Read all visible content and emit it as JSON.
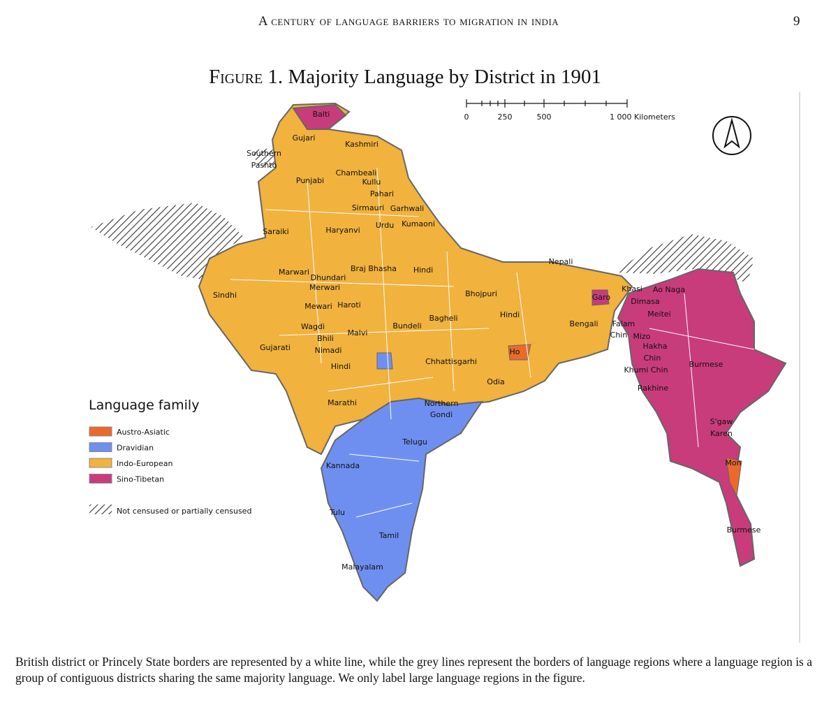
{
  "header": {
    "title": "A Century of Language Barriers to Migration in India",
    "page_number": "9"
  },
  "figure": {
    "label": "Figure 1.",
    "title": "Majority Language by District in 1901",
    "scale_bar": [
      "0",
      "250",
      "500",
      "1 000 Kilometers"
    ],
    "legend": {
      "title": "Language family",
      "items": [
        {
          "label": "Austro-Asiatic",
          "color": "#ea6a2c"
        },
        {
          "label": "Dravidian",
          "color": "#6f8ff0"
        },
        {
          "label": "Indo-European",
          "color": "#f1b23e"
        },
        {
          "label": "Sino-Tibetan",
          "color": "#c83c7c"
        }
      ],
      "hatch_label": "Not censused or partially censused"
    },
    "map_labels": [
      "Balti",
      "Gujari",
      "Kashmiri",
      [
        "Southern",
        "Pashto"
      ],
      "Chambeali",
      "Kullu",
      "Punjabi",
      "Pahari",
      "Sirmauri",
      "Garhwali",
      "Urdu",
      "Kumaoni",
      "Haryanvi",
      "Saraiki",
      "Nepali",
      "Braj Bhasha",
      "Hindi",
      "Marwari",
      "Dhundari",
      "Merwari",
      "Sindhi",
      "Bhojpuri",
      "Khasi",
      "Ao Naga",
      "Garo",
      "Dimasa",
      "Mewari",
      "Haroti",
      "Meitei",
      "Hindi",
      "Bengali",
      [
        "Falam",
        "Chin"
      ],
      "Bagheli",
      "Wagdi",
      "Malvi",
      "Bundeli",
      "Mizo",
      "Bhili",
      [
        "Hakha",
        "Chin"
      ],
      "Gujarati",
      "Nimadi",
      "Ho",
      "Burmese",
      "Khumi Chin",
      "Hindi",
      "Chhattisgarhi",
      "Odia",
      "Rakhine",
      "Marathi",
      [
        "Northern",
        "Gondi"
      ],
      "Telugu",
      [
        "S'gaw",
        "Karen"
      ],
      "Mon",
      "Kannada",
      "Tulu",
      "Burmese",
      "Tamil",
      "Malayalam"
    ]
  },
  "caption": "British district or Princely State borders are represented by a white line, while the grey lines represent the borders of language regions where a language region is a group of contiguous districts sharing the same majority language. We only label large language regions in the figure."
}
